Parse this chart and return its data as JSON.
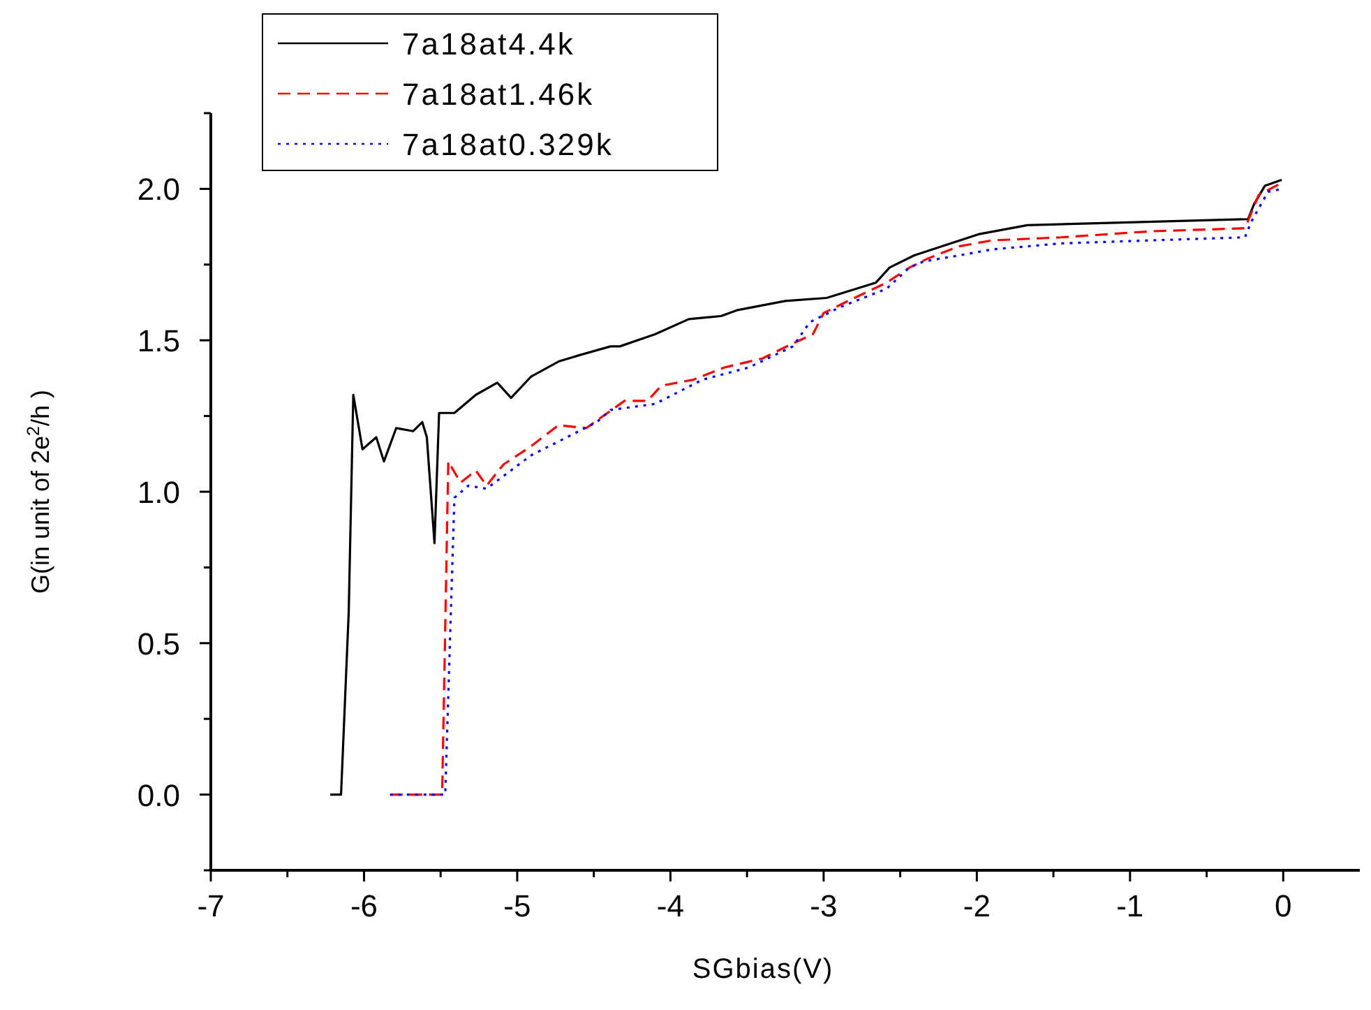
{
  "chart_data": {
    "type": "line",
    "xlabel": "SGbias(V)",
    "ylabel": "G(in unit of 2e$^{2}$/h )",
    "xlim": [
      -7,
      0.5
    ],
    "xticks": [
      -7,
      {
        "value": -6.5,
        "label": null
      },
      -6,
      {
        "value": -5.5,
        "label": null
      },
      -5,
      {
        "value": -4.5,
        "label": null
      },
      -4,
      {
        "value": -3.5,
        "label": null
      },
      -3,
      {
        "value": -2.5,
        "label": null
      },
      -2,
      {
        "value": -1.5,
        "label": null
      },
      -1,
      {
        "value": -0.5,
        "label": null
      },
      0
    ],
    "ylim": [
      -0.25,
      2.25
    ],
    "yticks": [
      {
        "value": -0.25,
        "label": null
      },
      {
        "value": 0,
        "label": "0.0"
      },
      {
        "value": 0.25,
        "label": null
      },
      {
        "value": 0.5,
        "label": "0.5"
      },
      {
        "value": 0.75,
        "label": null
      },
      {
        "value": 1,
        "label": "1.0"
      },
      {
        "value": 1.25,
        "label": null
      },
      {
        "value": 1.5,
        "label": "1.5"
      },
      {
        "value": 1.75,
        "label": null
      },
      {
        "value": 2,
        "label": "2.0"
      },
      {
        "value": 2.25,
        "label": null
      }
    ],
    "grid": false,
    "legend": "top left",
    "marker": "none",
    "series": [
      {
        "name": "7a18at4.4k",
        "color": "#000000",
        "line_style": "solid",
        "x": [
          -6.22,
          -6.15,
          -6.1,
          -6.07,
          -6.01,
          -5.92,
          -5.87,
          -5.79,
          -5.68,
          -5.62,
          -5.59,
          -5.54,
          -5.51,
          -5.41,
          -5.27,
          -5.13,
          -5.04,
          -4.91,
          -4.73,
          -4.6,
          -4.39,
          -4.33,
          -4.1,
          -3.88,
          -3.67,
          -3.56,
          -3.25,
          -2.98,
          -2.66,
          -2.57,
          -2.41,
          -2.23,
          -1.99,
          -1.67,
          -0.97,
          -0.23,
          -0.19,
          -0.12,
          -0.01
        ],
        "values": [
          0,
          0,
          0.6,
          1.32,
          1.14,
          1.18,
          1.1,
          1.21,
          1.2,
          1.23,
          1.18,
          0.83,
          1.26,
          1.26,
          1.32,
          1.36,
          1.31,
          1.38,
          1.43,
          1.45,
          1.48,
          1.48,
          1.52,
          1.57,
          1.58,
          1.6,
          1.63,
          1.64,
          1.69,
          1.74,
          1.78,
          1.81,
          1.85,
          1.88,
          1.89,
          1.9,
          1.95,
          2.01,
          2.03
        ]
      },
      {
        "name": "7a18at1.46k",
        "color": "#ff0000",
        "line_style": "dashed",
        "x": [
          -5.83,
          -5.49,
          -5.45,
          -5.37,
          -5.27,
          -5.2,
          -5.09,
          -4.91,
          -4.73,
          -4.55,
          -4.3,
          -4.15,
          -4.06,
          -3.85,
          -3.65,
          -3.4,
          -3.2,
          -3.07,
          -3.0,
          -2.84,
          -2.59,
          -2.44,
          -2.32,
          -2.12,
          -1.9,
          -1.45,
          -0.86,
          -0.25,
          -0.16,
          -0.01
        ],
        "values": [
          0,
          0,
          1.1,
          1.03,
          1.07,
          1.02,
          1.09,
          1.15,
          1.22,
          1.21,
          1.3,
          1.3,
          1.35,
          1.37,
          1.41,
          1.44,
          1.49,
          1.52,
          1.59,
          1.63,
          1.69,
          1.74,
          1.77,
          1.81,
          1.83,
          1.84,
          1.86,
          1.87,
          1.98,
          2.02
        ]
      },
      {
        "name": "7a18at0.329k",
        "color": "#0000ff",
        "line_style": "dotted",
        "x": [
          -5.83,
          -5.47,
          -5.41,
          -5.32,
          -5.2,
          -4.91,
          -4.48,
          -4.39,
          -4.1,
          -3.79,
          -3.49,
          -3.2,
          -3.09,
          -2.89,
          -2.59,
          -2.44,
          -2.35,
          -2.12,
          -1.9,
          -1.45,
          -0.86,
          -0.25,
          -0.21,
          -0.1,
          -0.01
        ],
        "values": [
          0,
          0,
          0.98,
          1.02,
          1.01,
          1.12,
          1.23,
          1.27,
          1.29,
          1.37,
          1.41,
          1.48,
          1.56,
          1.61,
          1.67,
          1.74,
          1.76,
          1.78,
          1.8,
          1.82,
          1.83,
          1.84,
          1.89,
          1.99,
          2.0
        ]
      }
    ]
  }
}
